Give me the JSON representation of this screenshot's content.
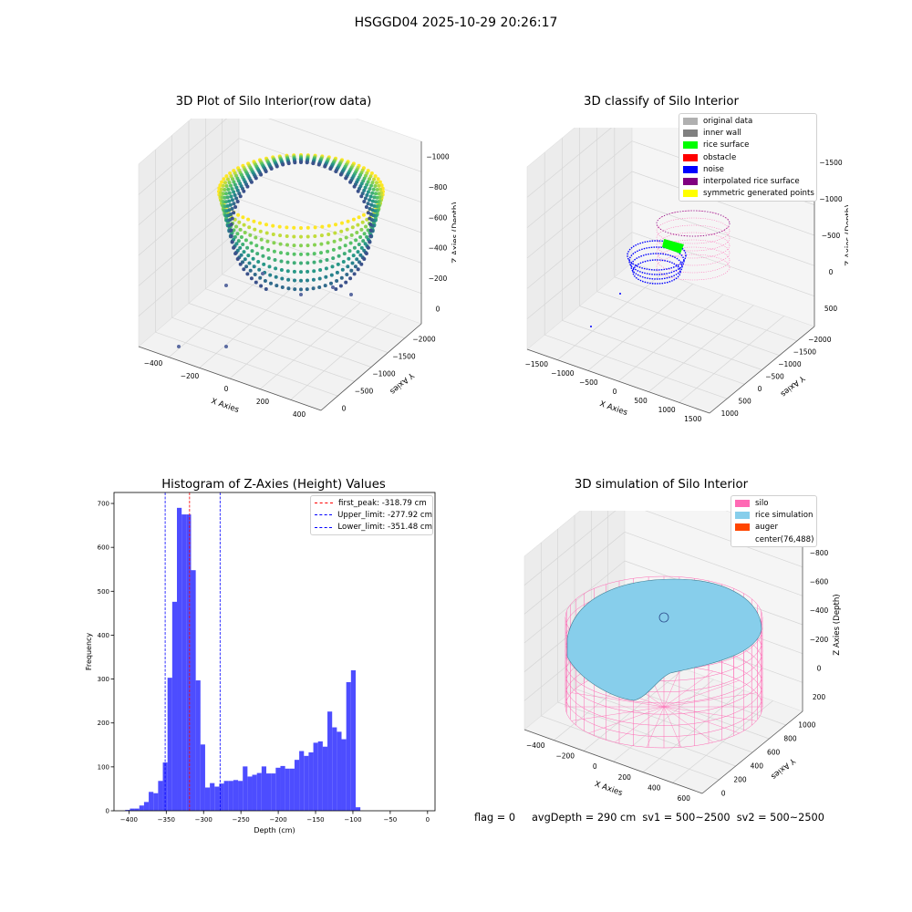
{
  "figure": {
    "title": "HSGGD04 2025-10-29 20:26:17",
    "footer": "flag = 0     avgDepth = 290 cm  sv1 = 500~2500  sv2 = 500~2500"
  },
  "colors": {
    "hist_bar": "#4d4dff",
    "first_peak": "#ff0000",
    "limits": "#0000ff",
    "silo": "#ff69b4",
    "rice": "#87ceeb",
    "auger": "#ff4500"
  },
  "panels": {
    "raw": {
      "title": "3D Plot of Silo Interior(row data)",
      "xlabel": "X Axies",
      "ylabel": "Y Axies",
      "zlabel": "Z Axies (Depth)",
      "xticks": [
        "−400",
        "−200",
        "0",
        "200",
        "400"
      ],
      "yticks": [
        "0",
        "−500",
        "−1000",
        "−1500",
        "−2000"
      ],
      "zticks": [
        "0",
        "−200",
        "−400",
        "−600",
        "−800",
        "−1000"
      ]
    },
    "classify": {
      "title": "3D classify of Silo Interior",
      "xlabel": "X Axies",
      "ylabel": "Y Axies",
      "zlabel": "Z Axies (Depth)",
      "xticks": [
        "−1500",
        "−1000",
        "−500",
        "0",
        "500",
        "1000",
        "1500"
      ],
      "yticks": [
        "1000",
        "500",
        "0",
        "−500",
        "−1000",
        "−1500",
        "−2000"
      ],
      "zticks": [
        "500",
        "0",
        "−500",
        "−1000",
        "−1500"
      ],
      "legend": [
        {
          "label": "original data",
          "color": "#b0b0b0"
        },
        {
          "label": "inner wall",
          "color": "#808080"
        },
        {
          "label": "rice surface",
          "color": "#00ff00"
        },
        {
          "label": "obstacle",
          "color": "#ff0000"
        },
        {
          "label": "noise",
          "color": "#0000ff"
        },
        {
          "label": "interpolated rice surface",
          "color": "#800080"
        },
        {
          "label": "symmetric generated points",
          "color": "#ffff00"
        }
      ]
    },
    "simulation": {
      "title": "3D simulation of Silo Interior",
      "xlabel": "X Axies",
      "ylabel": "Y Axies",
      "zlabel": "Z Axies (Depth)",
      "xticks": [
        "−400",
        "−200",
        "0",
        "200",
        "400",
        "600"
      ],
      "yticks": [
        "0",
        "200",
        "400",
        "600",
        "800",
        "1000"
      ],
      "zticks": [
        "200",
        "0",
        "−200",
        "−400",
        "−600",
        "−800"
      ],
      "legend": [
        {
          "label": "silo",
          "color": "#ff69b4"
        },
        {
          "label": "rice simulation",
          "color": "#87ceeb"
        },
        {
          "label": "auger",
          "color": "#ff4500"
        },
        {
          "label": "center(76,488)",
          "color": ""
        }
      ]
    }
  },
  "chart_data": {
    "type": "bar",
    "title": "Histogram of Z-Axies (Height) Values",
    "xlabel": "Depth (cm)",
    "ylabel": "Frequency",
    "xlim": [
      -420,
      10
    ],
    "ylim": [
      0,
      725
    ],
    "xticks": [
      -400,
      -350,
      -300,
      -250,
      -200,
      -150,
      -100,
      -50,
      0
    ],
    "xtick_labels": [
      "−400",
      "−350",
      "−300",
      "−250",
      "−200",
      "−150",
      "−100",
      "−50",
      "0"
    ],
    "yticks": [
      0,
      100,
      200,
      300,
      400,
      500,
      600,
      700
    ],
    "bin_width": 6.3,
    "bin_start": -405,
    "values": [
      2,
      5,
      5,
      12,
      20,
      43,
      40,
      68,
      110,
      303,
      476,
      690,
      675,
      675,
      548,
      297,
      151,
      53,
      63,
      55,
      62,
      68,
      68,
      70,
      68,
      101,
      78,
      82,
      86,
      101,
      85,
      85,
      98,
      102,
      96,
      96,
      116,
      136,
      125,
      133,
      155,
      158,
      146,
      226,
      190,
      180,
      163,
      293,
      320,
      8
    ],
    "lines": [
      {
        "label": "first_peak: -318.79 cm",
        "x": -318.79,
        "color": "#ff0000"
      },
      {
        "label": "Upper_limit: -277.92 cm",
        "x": -277.92,
        "color": "#0000ff"
      },
      {
        "label": "Lower_limit: -351.48 cm",
        "x": -351.48,
        "color": "#0000ff"
      }
    ],
    "legend_position": "top-right",
    "grid": false
  }
}
